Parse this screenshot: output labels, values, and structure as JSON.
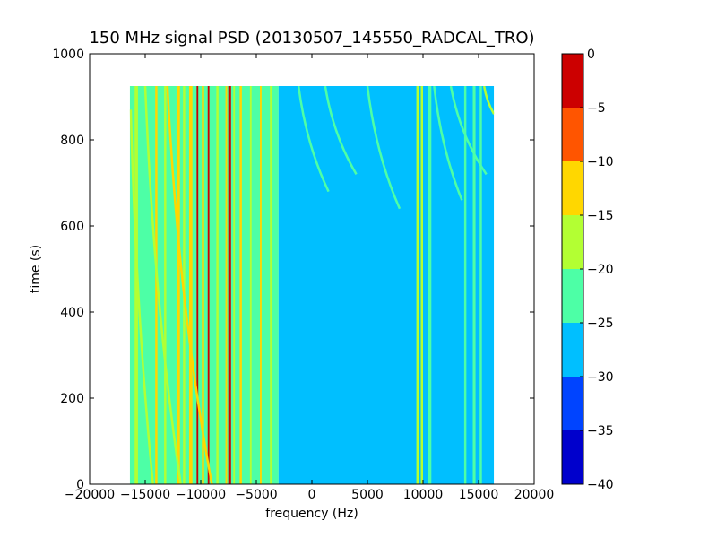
{
  "chart_data": {
    "type": "heatmap",
    "title": "150 MHz signal PSD (20130507_145550_RADCAL_TRO)",
    "xlabel": "frequency (Hz)",
    "ylabel": "time (s)",
    "xlim": [
      -20000,
      20000
    ],
    "ylim": [
      0,
      1000
    ],
    "xticks": [
      -20000,
      -15000,
      -10000,
      -5000,
      0,
      5000,
      10000,
      15000,
      20000
    ],
    "xtick_labels": [
      "−20000",
      "−15000",
      "−10000",
      "−5000",
      "0",
      "5000",
      "10000",
      "15000",
      "20000"
    ],
    "yticks": [
      0,
      200,
      400,
      600,
      800,
      1000
    ],
    "ytick_labels": [
      "0",
      "200",
      "400",
      "600",
      "800",
      "1000"
    ],
    "data_extent": {
      "x": [
        -16384,
        16384
      ],
      "y": [
        0,
        925
      ]
    },
    "colorbar": {
      "levels": [
        -40,
        -35,
        -30,
        -25,
        -20,
        -15,
        -10,
        -5,
        0
      ],
      "tick_labels": [
        "−40",
        "−35",
        "−30",
        "−25",
        "−20",
        "−15",
        "−10",
        "−5",
        "0"
      ],
      "colors": [
        "#0000cc",
        "#0044ff",
        "#00bfff",
        "#4dffa6",
        "#b3ff33",
        "#ffd700",
        "#ff5500",
        "#cc0000"
      ]
    },
    "background_levels": [
      {
        "x": [
          -16384,
          -3000
        ],
        "color": "#4dffa6"
      },
      {
        "x": [
          -3000,
          16384
        ],
        "color": "#00bfff"
      }
    ],
    "vertical_lines": [
      {
        "x": -15800,
        "color": "#b3ff33",
        "width": 300
      },
      {
        "x": -14000,
        "color": "#ffd700",
        "width": 200
      },
      {
        "x": -13200,
        "color": "#b3ff33",
        "width": 200
      },
      {
        "x": -12000,
        "color": "#ffd700",
        "width": 250
      },
      {
        "x": -11500,
        "color": "#b3ff33",
        "width": 200
      },
      {
        "x": -10900,
        "color": "#ffd700",
        "width": 300
      },
      {
        "x": -10300,
        "color": "#cc0000",
        "width": 150
      },
      {
        "x": -9800,
        "color": "#ffd700",
        "width": 200
      },
      {
        "x": -9300,
        "color": "#cc0000",
        "width": 150
      },
      {
        "x": -8500,
        "color": "#b3ff33",
        "width": 200
      },
      {
        "x": -7700,
        "color": "#ffd700",
        "width": 150
      },
      {
        "x": -7400,
        "color": "#cc0000",
        "width": 250
      },
      {
        "x": -7000,
        "color": "#b3ff33",
        "width": 150
      },
      {
        "x": -6400,
        "color": "#ffd700",
        "width": 200
      },
      {
        "x": -5500,
        "color": "#b3ff33",
        "width": 150
      },
      {
        "x": -4600,
        "color": "#ffd700",
        "width": 150
      },
      {
        "x": -3700,
        "color": "#b3ff33",
        "width": 150
      },
      {
        "x": 9500,
        "color": "#b3ff33",
        "width": 200
      },
      {
        "x": 9900,
        "color": "#b3ff33",
        "width": 200
      },
      {
        "x": 10600,
        "color": "#4dffa6",
        "width": 300
      },
      {
        "x": 13800,
        "color": "#4dffa6",
        "width": 200
      },
      {
        "x": 14600,
        "color": "#4dffa6",
        "width": 250
      },
      {
        "x": 15200,
        "color": "#4dffa6",
        "width": 200
      }
    ],
    "chirp_lines": [
      {
        "x0": -16300,
        "y0": 870,
        "x1": -14300,
        "y1": 0,
        "color": "#b3ff33"
      },
      {
        "x0": -15000,
        "y0": 925,
        "x1": -11800,
        "y1": 0,
        "color": "#b3ff33"
      },
      {
        "x0": -13000,
        "y0": 925,
        "x1": -9000,
        "y1": 0,
        "color": "#ffd700"
      },
      {
        "x0": -1200,
        "y0": 925,
        "x1": 1500,
        "y1": 680,
        "color": "#4dffa6"
      },
      {
        "x0": 1200,
        "y0": 925,
        "x1": 4000,
        "y1": 720,
        "color": "#4dffa6"
      },
      {
        "x0": 5000,
        "y0": 925,
        "x1": 7900,
        "y1": 640,
        "color": "#4dffa6"
      },
      {
        "x0": 11000,
        "y0": 925,
        "x1": 13500,
        "y1": 660,
        "color": "#4dffa6"
      },
      {
        "x0": 12500,
        "y0": 925,
        "x1": 15700,
        "y1": 720,
        "color": "#4dffa6"
      },
      {
        "x0": 15500,
        "y0": 925,
        "x1": 16384,
        "y1": 860,
        "color": "#b3ff33"
      }
    ]
  }
}
